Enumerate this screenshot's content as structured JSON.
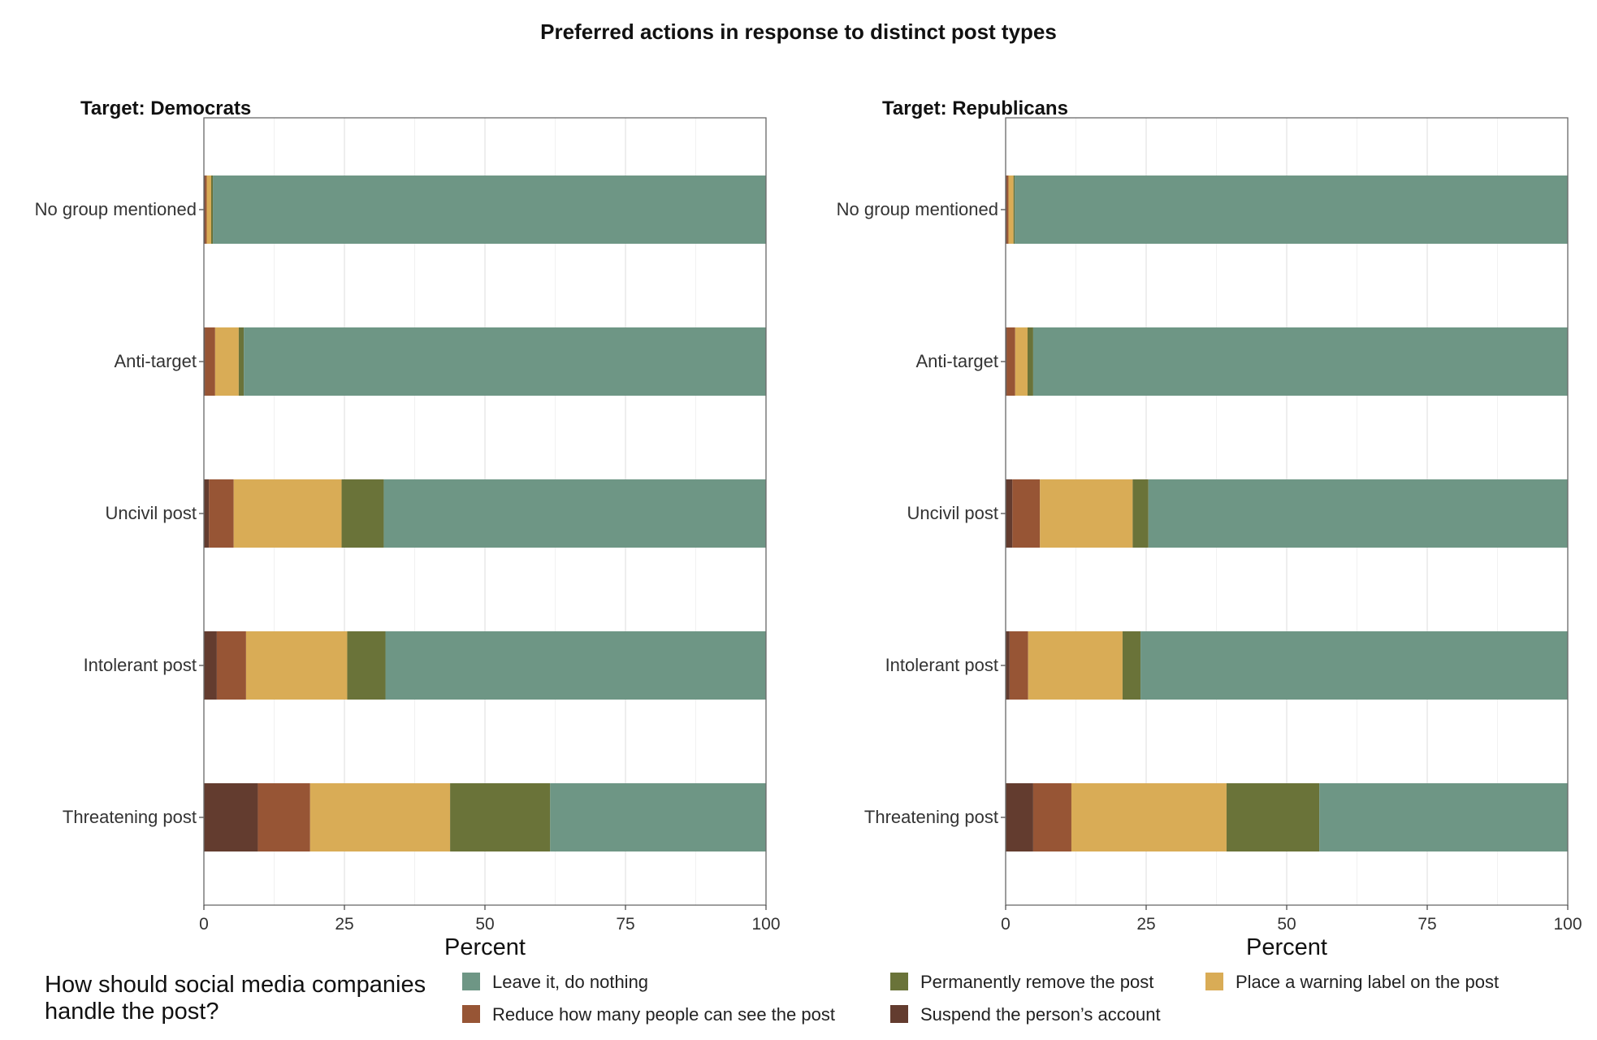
{
  "chart_data": {
    "type": "bar",
    "orientation": "horizontal",
    "stacked": true,
    "title": "Preferred actions in response to distinct post types",
    "xlabel": "Percent",
    "xlim": [
      0,
      100
    ],
    "xticks": [
      "0",
      "25",
      "50",
      "75",
      "100"
    ],
    "categories": [
      "No group mentioned",
      "Anti-target",
      "Uncivil post",
      "Intolerant post",
      "Threatening post"
    ],
    "legend": {
      "title_lines": [
        "How should social media companies",
        "handle the post?"
      ],
      "placement": "bottom"
    },
    "series_order": [
      "suspend",
      "reduce",
      "warning",
      "remove",
      "leave"
    ],
    "series": [
      {
        "key": "leave",
        "name": "Leave it, do nothing",
        "color": "#6e9685"
      },
      {
        "key": "reduce",
        "name": "Reduce how many people can see the post",
        "color": "#975535"
      },
      {
        "key": "remove",
        "name": "Permanently remove the post",
        "color": "#6a7339"
      },
      {
        "key": "suspend",
        "name": "Suspend the person’s account",
        "color": "#633c2f"
      },
      {
        "key": "warning",
        "name": "Place a warning label on the post",
        "color": "#d9ac56"
      }
    ],
    "panels": [
      {
        "title": "Target: Democrats",
        "data": [
          {
            "category": "No group mentioned",
            "suspend": 0.2,
            "reduce": 0.3,
            "warning": 0.8,
            "remove": 0.3,
            "leave": 98.4
          },
          {
            "category": "Anti-target",
            "suspend": 0.2,
            "reduce": 1.8,
            "warning": 4.2,
            "remove": 0.9,
            "leave": 92.9
          },
          {
            "category": "Uncivil post",
            "suspend": 0.9,
            "reduce": 4.4,
            "warning": 19.2,
            "remove": 7.5,
            "leave": 68.0
          },
          {
            "category": "Intolerant post",
            "suspend": 2.3,
            "reduce": 5.2,
            "warning": 18.0,
            "remove": 6.8,
            "leave": 67.7
          },
          {
            "category": "Threatening post",
            "suspend": 9.6,
            "reduce": 9.3,
            "warning": 24.9,
            "remove": 17.8,
            "leave": 38.4
          }
        ]
      },
      {
        "title": "Target: Republicans",
        "data": [
          {
            "category": "No group mentioned",
            "suspend": 0.2,
            "reduce": 0.3,
            "warning": 0.9,
            "remove": 0.2,
            "leave": 98.4
          },
          {
            "category": "Anti-target",
            "suspend": 0.2,
            "reduce": 1.5,
            "warning": 2.2,
            "remove": 1.0,
            "leave": 95.1
          },
          {
            "category": "Uncivil post",
            "suspend": 1.2,
            "reduce": 4.9,
            "warning": 16.5,
            "remove": 2.8,
            "leave": 74.6
          },
          {
            "category": "Intolerant post",
            "suspend": 0.7,
            "reduce": 3.3,
            "warning": 16.8,
            "remove": 3.2,
            "leave": 76.0
          },
          {
            "category": "Threatening post",
            "suspend": 4.9,
            "reduce": 6.8,
            "warning": 27.6,
            "remove": 16.5,
            "leave": 44.2
          }
        ]
      }
    ]
  }
}
